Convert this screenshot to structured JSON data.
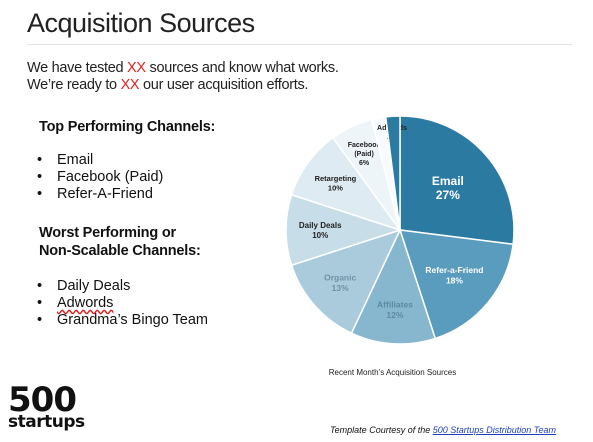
{
  "title": "Acquisition Sources",
  "intro": {
    "line1_a": "We have tested ",
    "line1_hl": "XX",
    "line1_b": " sources and know what works.",
    "line2_a": "We’re ready to ",
    "line2_hl": "XX",
    "line2_b": " our user acquisition efforts.",
    "highlight_color": "#e0221e"
  },
  "top_channels": {
    "heading": "Top Performing Channels:",
    "items": [
      "Email",
      "Facebook (Paid)",
      "Refer-A-Friend"
    ]
  },
  "worst_channels": {
    "heading_line1": "Worst Performing or",
    "heading_line2": "Non-Scalable Channels:",
    "items": [
      "Daily Deals",
      "Adwords",
      "Grandma’s Bingo Team"
    ]
  },
  "chart_data": {
    "type": "pie",
    "caption": "Recent Month’s Acquisition Sources",
    "slices": [
      {
        "label": "Email",
        "value": 27,
        "pct": "27%",
        "color": "#2a7aa2"
      },
      {
        "label": "Refer-a-Friend",
        "value": 18,
        "pct": "18%",
        "color": "#5a9cbd"
      },
      {
        "label": "Affiliates",
        "value": 12,
        "pct": "12%",
        "color": "#86b7cf"
      },
      {
        "label": "Organic",
        "value": 13,
        "pct": "13%",
        "color": "#a9cbdc"
      },
      {
        "label": "Daily Deals",
        "value": 10,
        "pct": "10%",
        "color": "#c7dde8"
      },
      {
        "label": "Retargeting",
        "value": 10,
        "pct": "10%",
        "color": "#deebf2"
      },
      {
        "label": "Facebook (Paid)",
        "value": 6,
        "pct": "6%",
        "color": "#eef5f9"
      },
      {
        "label": "Adwords",
        "value": 2,
        "pct": "2%",
        "color": "#f8fbfd"
      },
      {
        "label": "",
        "value": 2,
        "pct": "",
        "color": "#2a7aa2"
      }
    ]
  },
  "logo": {
    "line1": "500",
    "line2": "startups"
  },
  "footer": {
    "text": "Template Courtesy of the ",
    "link": "500 Startups Distribution Team"
  }
}
